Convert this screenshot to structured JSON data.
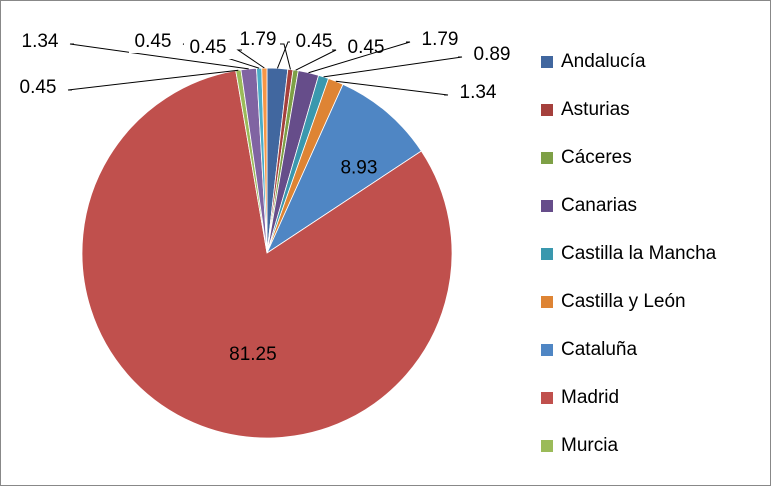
{
  "chart_data": {
    "type": "pie",
    "categories": [
      "Andalucía",
      "Asturias",
      "Cáceres",
      "Canarias",
      "Castilla la Mancha",
      "Castilla y León",
      "Cataluña",
      "Madrid",
      "Murcia",
      null,
      null,
      null
    ],
    "values": [
      1.79,
      0.45,
      0.45,
      1.79,
      0.89,
      1.34,
      8.93,
      81.25,
      0.45,
      1.34,
      0.45,
      0.45
    ],
    "colors": [
      "#41679f",
      "#a5403c",
      "#7ea046",
      "#664d8a",
      "#3a98ae",
      "#de8434",
      "#4f86c4",
      "#c0504d",
      "#9bbb59",
      "#8064a2",
      "#4bacc6",
      "#f79646"
    ],
    "legend": "right"
  }
}
